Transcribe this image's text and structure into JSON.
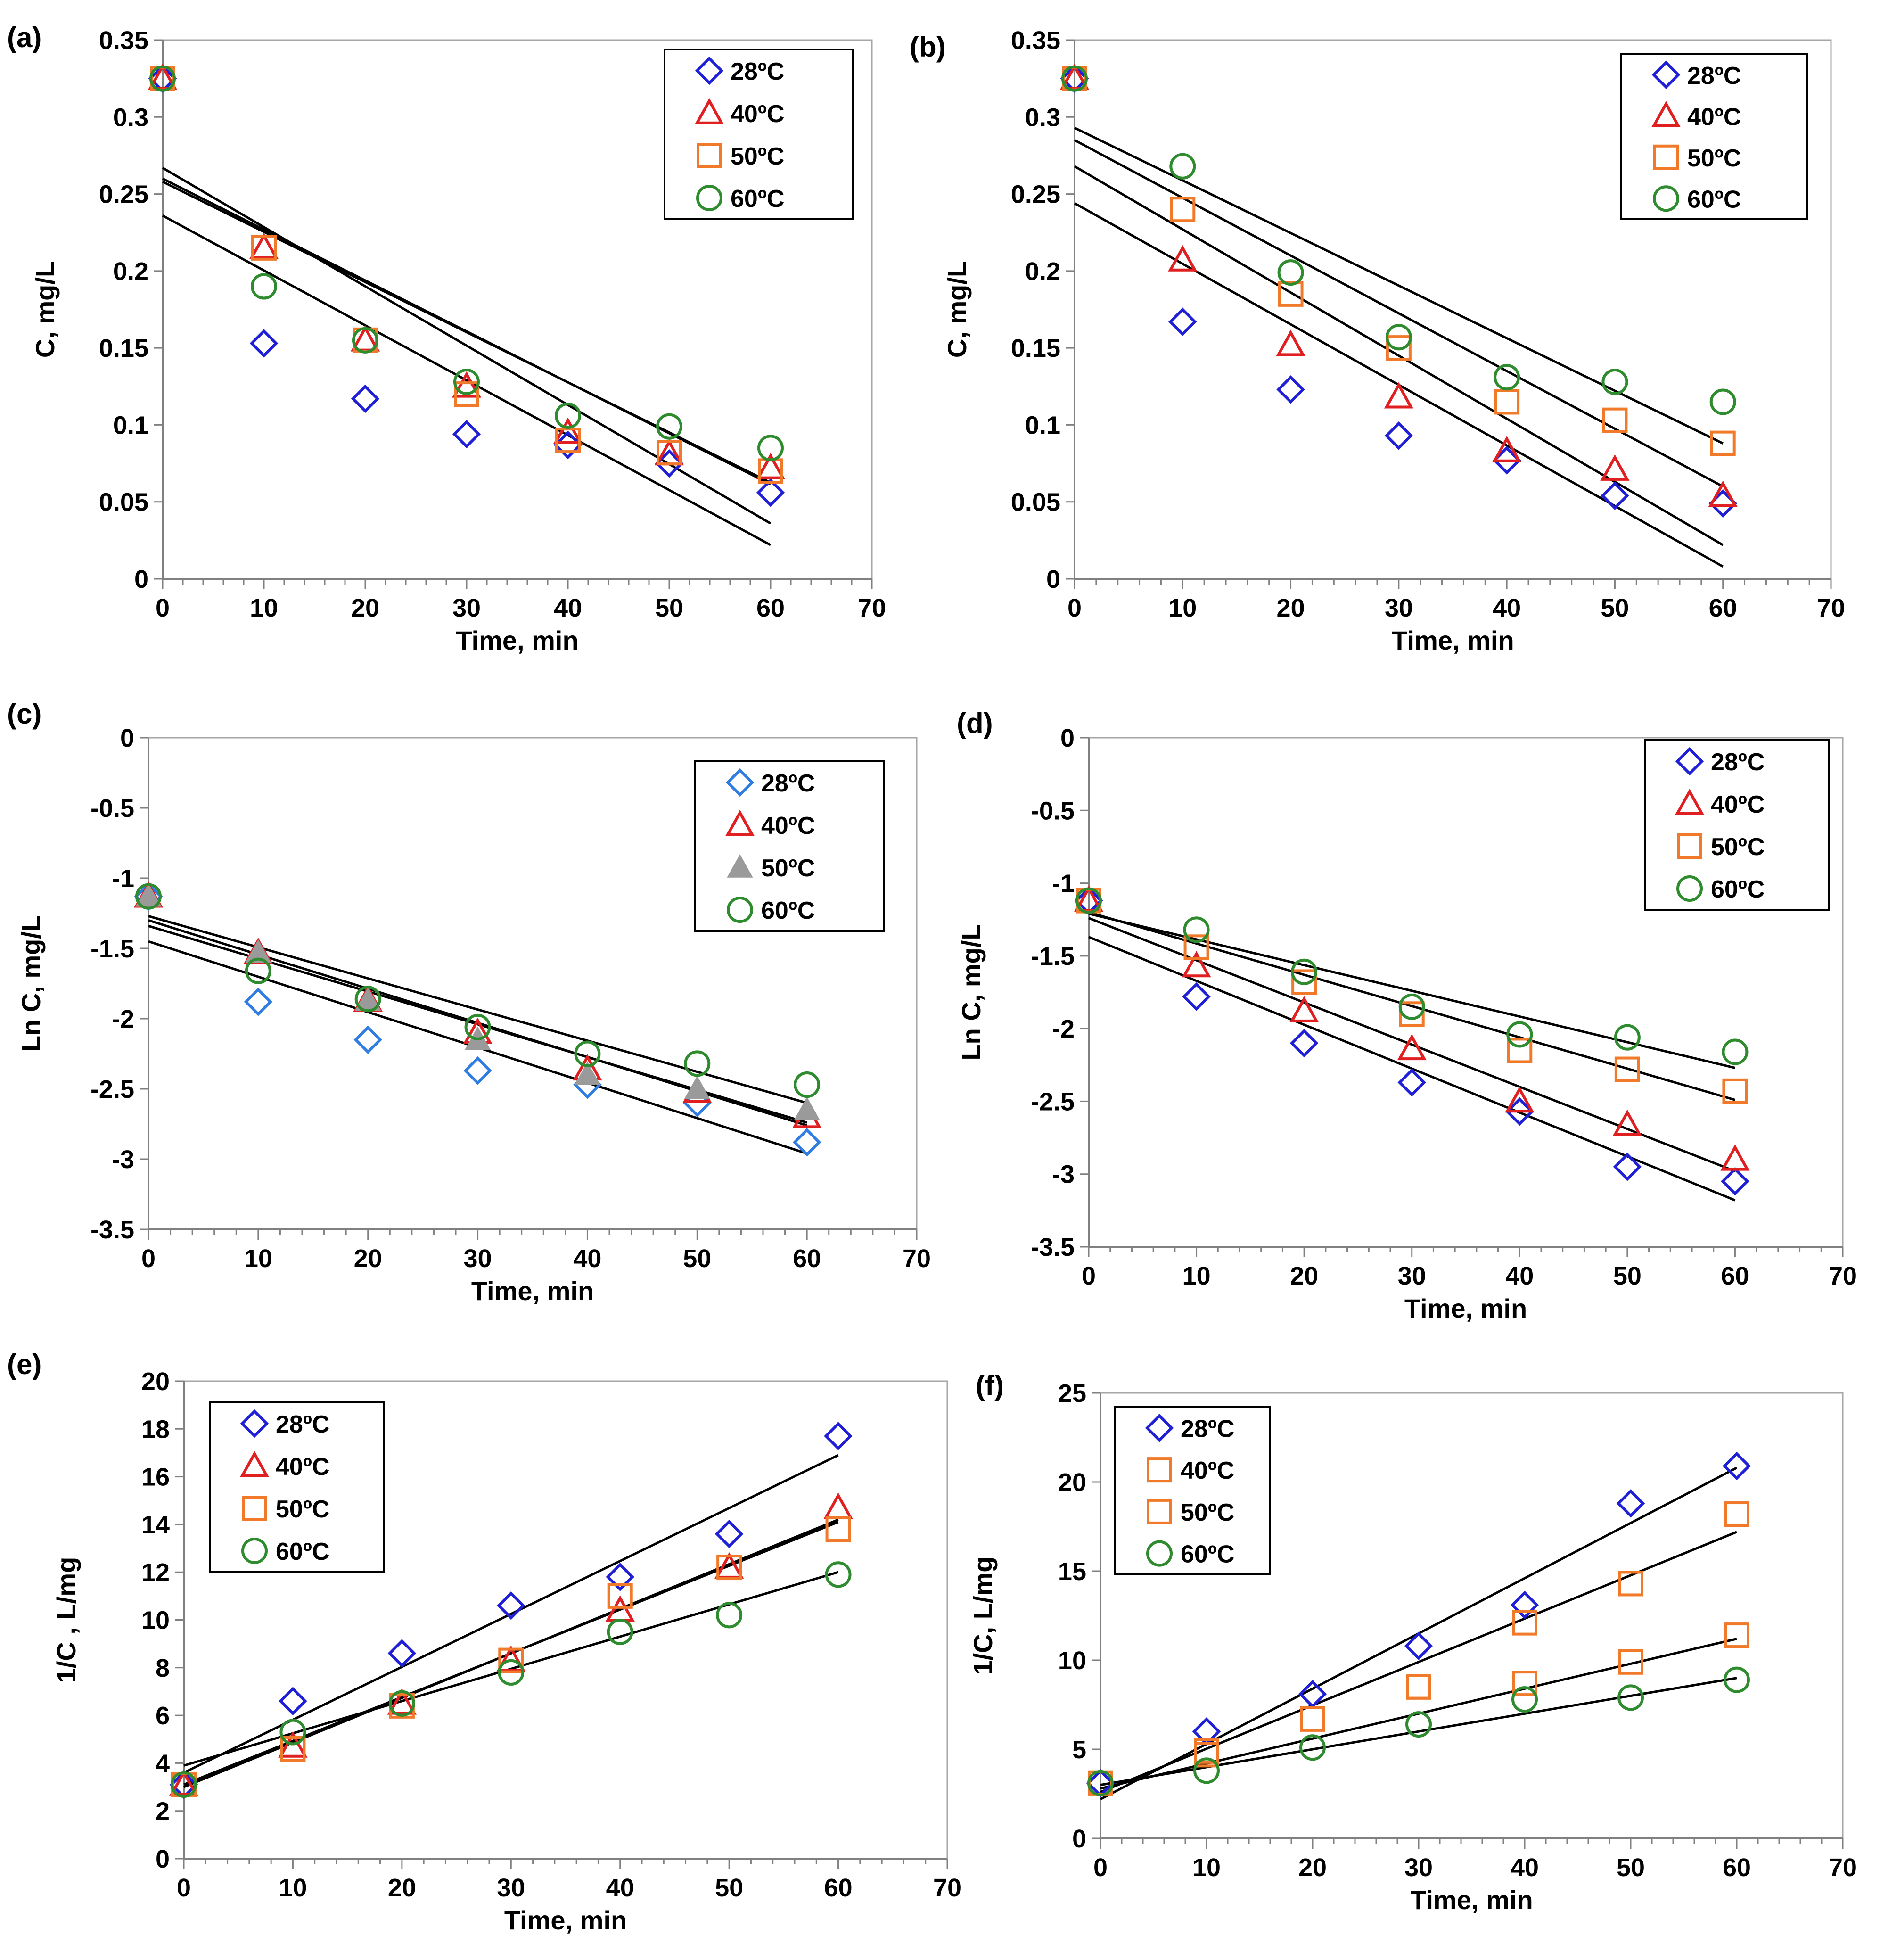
{
  "chart_data": [
    {
      "panel": "(a)",
      "type": "scatter",
      "xlabel": "Time, min",
      "ylabel": "C, mg/L",
      "xlim": [
        0,
        70
      ],
      "ylim": [
        0,
        0.35
      ],
      "xticks": [
        "0",
        "10",
        "20",
        "30",
        "40",
        "50",
        "60",
        "70"
      ],
      "yticks": [
        "0",
        "0.05",
        "0.1",
        "0.15",
        "0.2",
        "0.25",
        "0.3",
        "0.35"
      ],
      "legend_position": "top-right",
      "series": [
        {
          "name": "28ºC",
          "marker": "diamond",
          "color": "#1f1fd6",
          "x": [
            0,
            10,
            20,
            30,
            40,
            50,
            60
          ],
          "y": [
            0.325,
            0.153,
            0.117,
            0.094,
            0.087,
            0.075,
            0.056
          ],
          "fit": [
            0.258,
            0.0625
          ]
        },
        {
          "name": "40ºC",
          "marker": "triangle",
          "color": "#e02020",
          "x": [
            0,
            10,
            20,
            30,
            40,
            50,
            60
          ],
          "y": [
            0.325,
            0.215,
            0.155,
            0.125,
            0.095,
            0.081,
            0.072
          ],
          "fit": [
            0.26,
            0.0615
          ]
        },
        {
          "name": "50ºC",
          "marker": "square",
          "color": "#f07a2a",
          "x": [
            0,
            10,
            20,
            30,
            40,
            50,
            60
          ],
          "y": [
            0.325,
            0.215,
            0.155,
            0.12,
            0.09,
            0.082,
            0.07
          ],
          "fit": [
            0.236,
            0.022
          ]
        },
        {
          "name": "60ºC",
          "marker": "circle",
          "color": "#2e8b2e",
          "x": [
            0,
            10,
            20,
            30,
            40,
            50,
            60
          ],
          "y": [
            0.325,
            0.19,
            0.155,
            0.128,
            0.106,
            0.099,
            0.085
          ],
          "fit": [
            0.267,
            0.036
          ]
        }
      ]
    },
    {
      "panel": "(b)",
      "type": "scatter",
      "xlabel": "Time, min",
      "ylabel": "C, mg/L",
      "xlim": [
        0,
        70
      ],
      "ylim": [
        0,
        0.35
      ],
      "xticks": [
        "0",
        "10",
        "20",
        "30",
        "40",
        "50",
        "60",
        "70"
      ],
      "yticks": [
        "0",
        "0.05",
        "0.1",
        "0.15",
        "0.2",
        "0.25",
        "0.3",
        "0.35"
      ],
      "legend_position": "top-right",
      "series": [
        {
          "name": "28ºC",
          "marker": "diamond",
          "color": "#1f1fd6",
          "x": [
            0,
            10,
            20,
            30,
            40,
            50,
            60
          ],
          "y": [
            0.325,
            0.167,
            0.123,
            0.093,
            0.077,
            0.054,
            0.049
          ],
          "fit": [
            0.244,
            0.008
          ]
        },
        {
          "name": "40ºC",
          "marker": "triangle",
          "color": "#e02020",
          "x": [
            0,
            10,
            20,
            30,
            40,
            50,
            60
          ],
          "y": [
            0.325,
            0.207,
            0.152,
            0.118,
            0.083,
            0.071,
            0.054
          ],
          "fit": [
            0.268,
            0.022
          ]
        },
        {
          "name": "50ºC",
          "marker": "square",
          "color": "#f07a2a",
          "x": [
            0,
            10,
            20,
            30,
            40,
            50,
            60
          ],
          "y": [
            0.325,
            0.24,
            0.185,
            0.15,
            0.115,
            0.103,
            0.088
          ],
          "fit": [
            0.285,
            0.06
          ]
        },
        {
          "name": "60ºC",
          "marker": "circle",
          "color": "#2e8b2e",
          "x": [
            0,
            10,
            20,
            30,
            40,
            50,
            60
          ],
          "y": [
            0.325,
            0.268,
            0.199,
            0.157,
            0.131,
            0.128,
            0.115
          ],
          "fit": [
            0.293,
            0.088
          ]
        }
      ]
    },
    {
      "panel": "(c)",
      "type": "scatter",
      "xlabel": "Time, min",
      "ylabel": "Ln C, mg/L",
      "xlim": [
        0,
        70
      ],
      "ylim": [
        -3.5,
        0
      ],
      "xticks": [
        "0",
        "10",
        "20",
        "30",
        "40",
        "50",
        "60",
        "70"
      ],
      "yticks": [
        "-3.5",
        "-3",
        "-2.5",
        "-2",
        "-1.5",
        "-1",
        "-0.5",
        "0"
      ],
      "legend_position": "top-right",
      "series": [
        {
          "name": "28ºC",
          "marker": "diamond",
          "color": "#2f7de0",
          "x": [
            0,
            10,
            20,
            30,
            40,
            50,
            60
          ],
          "y": [
            -1.13,
            -1.88,
            -2.15,
            -2.37,
            -2.47,
            -2.6,
            -2.88
          ],
          "fit": [
            -1.45,
            -2.96
          ]
        },
        {
          "name": "40ºC",
          "marker": "triangle",
          "color": "#e02020",
          "x": [
            0,
            10,
            20,
            30,
            40,
            50,
            60
          ],
          "y": [
            -1.13,
            -1.53,
            -1.87,
            -2.1,
            -2.36,
            -2.52,
            -2.7
          ],
          "fit": [
            -1.3,
            -2.76
          ]
        },
        {
          "name": "50ºC",
          "marker": "filled-triangle",
          "color": "#9a9a9a",
          "x": [
            0,
            10,
            20,
            30,
            40,
            50,
            60
          ],
          "y": [
            -1.13,
            -1.53,
            -1.87,
            -2.15,
            -2.4,
            -2.5,
            -2.65
          ],
          "fit": [
            -1.34,
            -2.74
          ]
        },
        {
          "name": "60ºC",
          "marker": "circle",
          "color": "#2e8b2e",
          "x": [
            0,
            10,
            20,
            30,
            40,
            50,
            60
          ],
          "y": [
            -1.13,
            -1.66,
            -1.86,
            -2.06,
            -2.25,
            -2.32,
            -2.47
          ],
          "fit": [
            -1.27,
            -2.6
          ]
        }
      ]
    },
    {
      "panel": "(d)",
      "type": "scatter",
      "xlabel": "Time, min",
      "ylabel": "Ln C, mg/L",
      "xlim": [
        0,
        70
      ],
      "ylim": [
        -3.5,
        0
      ],
      "xticks": [
        "0",
        "10",
        "20",
        "30",
        "40",
        "50",
        "60",
        "70"
      ],
      "yticks": [
        "-3.5",
        "-3",
        "-2.5",
        "-2",
        "-1.5",
        "-1",
        "-0.5",
        "0"
      ],
      "legend_position": "top-right",
      "series": [
        {
          "name": "28ºC",
          "marker": "diamond",
          "color": "#1f1fd6",
          "x": [
            0,
            10,
            20,
            30,
            40,
            50,
            60
          ],
          "y": [
            -1.12,
            -1.78,
            -2.1,
            -2.37,
            -2.57,
            -2.95,
            -3.05
          ],
          "fit": [
            -1.37,
            -3.18
          ]
        },
        {
          "name": "40ºC",
          "marker": "triangle",
          "color": "#e02020",
          "x": [
            0,
            10,
            20,
            30,
            40,
            50,
            60
          ],
          "y": [
            -1.12,
            -1.57,
            -1.88,
            -2.14,
            -2.5,
            -2.66,
            -2.9
          ],
          "fit": [
            -1.24,
            -2.98
          ]
        },
        {
          "name": "50ºC",
          "marker": "square",
          "color": "#f07a2a",
          "x": [
            0,
            10,
            20,
            30,
            40,
            50,
            60
          ],
          "y": [
            -1.12,
            -1.44,
            -1.68,
            -1.9,
            -2.15,
            -2.28,
            -2.43
          ],
          "fit": [
            -1.2,
            -2.49
          ]
        },
        {
          "name": "60ºC",
          "marker": "circle",
          "color": "#2e8b2e",
          "x": [
            0,
            10,
            20,
            30,
            40,
            50,
            60
          ],
          "y": [
            -1.12,
            -1.32,
            -1.61,
            -1.85,
            -2.04,
            -2.06,
            -2.16
          ],
          "fit": [
            -1.21,
            -2.27
          ]
        }
      ]
    },
    {
      "panel": "(e)",
      "type": "scatter",
      "xlabel": "Time, min",
      "ylabel": "1/C , L/mg",
      "xlim": [
        0,
        70
      ],
      "ylim": [
        0,
        20
      ],
      "xticks": [
        "0",
        "10",
        "20",
        "30",
        "40",
        "50",
        "60",
        "70"
      ],
      "yticks": [
        "0",
        "2",
        "4",
        "6",
        "8",
        "10",
        "12",
        "14",
        "16",
        "18",
        "20"
      ],
      "legend_position": "top-left",
      "series": [
        {
          "name": "28ºC",
          "marker": "diamond",
          "color": "#1f1fd6",
          "x": [
            0,
            10,
            20,
            30,
            40,
            50,
            60
          ],
          "y": [
            3.1,
            6.6,
            8.6,
            10.6,
            11.8,
            13.6,
            17.7
          ],
          "fit": [
            3.6,
            16.9
          ]
        },
        {
          "name": "40ºC",
          "marker": "triangle",
          "color": "#e02020",
          "x": [
            0,
            10,
            20,
            30,
            40,
            50,
            60
          ],
          "y": [
            3.1,
            4.7,
            6.5,
            8.3,
            10.4,
            12.2,
            14.7
          ],
          "fit": [
            3.0,
            14.2
          ]
        },
        {
          "name": "50ºC",
          "marker": "square",
          "color": "#f07a2a",
          "x": [
            0,
            10,
            20,
            30,
            40,
            50,
            60
          ],
          "y": [
            3.1,
            4.6,
            6.4,
            8.3,
            11.0,
            12.2,
            13.8
          ],
          "fit": [
            3.1,
            14.1
          ]
        },
        {
          "name": "60ºC",
          "marker": "circle",
          "color": "#2e8b2e",
          "x": [
            0,
            10,
            20,
            30,
            40,
            50,
            60
          ],
          "y": [
            3.1,
            5.3,
            6.5,
            7.8,
            9.5,
            10.2,
            11.9
          ],
          "fit": [
            3.9,
            12.0
          ]
        }
      ]
    },
    {
      "panel": "(f)",
      "type": "scatter",
      "xlabel": "Time, min",
      "ylabel": "1/C, L/mg",
      "xlim": [
        0,
        70
      ],
      "ylim": [
        0,
        25
      ],
      "xticks": [
        "0",
        "10",
        "20",
        "30",
        "40",
        "50",
        "60",
        "70"
      ],
      "yticks": [
        "0",
        "5",
        "10",
        "15",
        "20",
        "25"
      ],
      "legend_position": "top-left",
      "series": [
        {
          "name": "28ºC",
          "marker": "diamond",
          "color": "#1f1fd6",
          "x": [
            0,
            10,
            20,
            30,
            40,
            50,
            60
          ],
          "y": [
            3.1,
            6.0,
            8.1,
            10.8,
            13.1,
            18.8,
            20.9
          ],
          "fit": [
            2.2,
            20.8
          ]
        },
        {
          "name": "40ºC",
          "marker": "square",
          "color": "#f07a2a",
          "x": [
            0,
            10,
            20,
            30,
            40,
            50,
            60
          ],
          "y": [
            3.1,
            4.9,
            6.7,
            8.5,
            12.1,
            14.3,
            18.2
          ],
          "fit": [
            2.6,
            17.2
          ]
        },
        {
          "name": "50ºC",
          "marker": "square",
          "color": "#f07a2a",
          "x": [
            0,
            10,
            20,
            30,
            40,
            50,
            60
          ],
          "y": [
            3.1,
            4.7,
            6.7,
            8.5,
            8.7,
            9.9,
            11.4
          ],
          "fit": [
            2.8,
            11.2
          ]
        },
        {
          "name": "60ºC",
          "marker": "circle",
          "color": "#2e8b2e",
          "x": [
            0,
            10,
            20,
            30,
            40,
            50,
            60
          ],
          "y": [
            3.1,
            3.8,
            5.1,
            6.4,
            7.8,
            7.9,
            8.9
          ],
          "fit": [
            3.0,
            9.0
          ]
        }
      ]
    }
  ]
}
